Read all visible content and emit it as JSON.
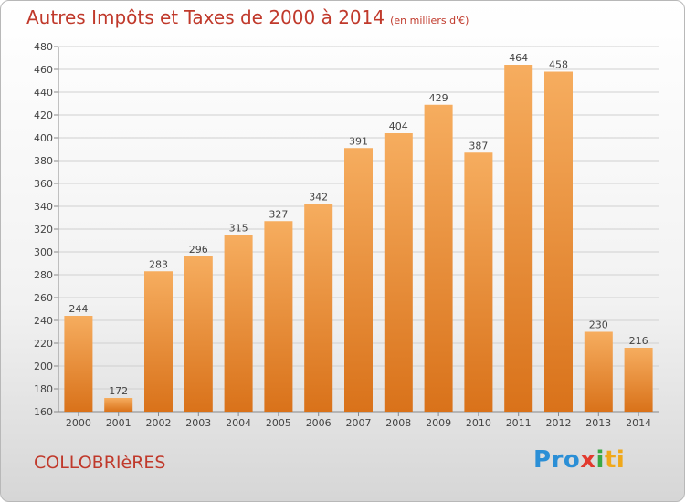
{
  "title": "Autres Impôts et Taxes de 2000 à 2014",
  "unit": "(en milliers d'€)",
  "place": "COLLOBRIèRES",
  "brand": [
    "P",
    "r",
    "o",
    "x",
    "i",
    "t",
    "i"
  ],
  "colors": {
    "bar_top": "#f6ad5f",
    "bar_bottom": "#d9721a",
    "title": "#c0392b",
    "grid": "#d0d0d0"
  },
  "chart_data": {
    "type": "bar",
    "title": "Autres Impôts et Taxes de 2000 à 2014",
    "ylabel": "",
    "xlabel": "",
    "categories": [
      "2000",
      "2001",
      "2002",
      "2003",
      "2004",
      "2005",
      "2006",
      "2007",
      "2008",
      "2009",
      "2010",
      "2011",
      "2012",
      "2013",
      "2014"
    ],
    "values": [
      244,
      172,
      283,
      296,
      315,
      327,
      342,
      391,
      404,
      429,
      387,
      464,
      458,
      230,
      216
    ],
    "ylim": [
      160,
      480
    ],
    "yticks": [
      160,
      180,
      200,
      220,
      240,
      260,
      280,
      300,
      320,
      340,
      360,
      380,
      400,
      420,
      440,
      460,
      480
    ],
    "grid": true
  }
}
